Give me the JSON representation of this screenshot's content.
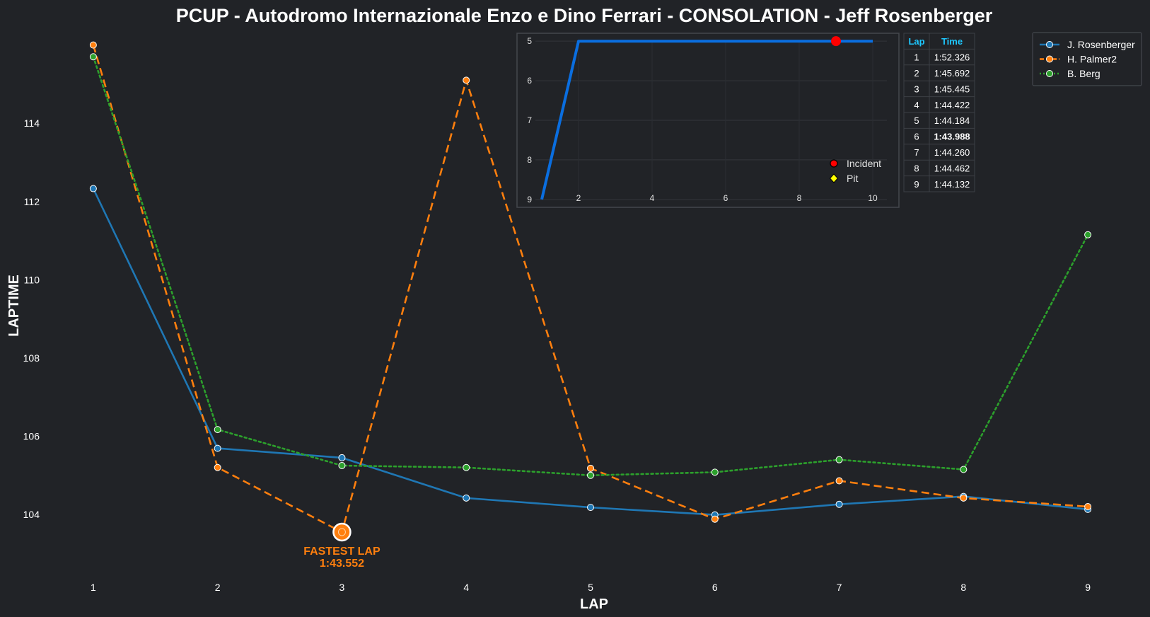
{
  "colors": {
    "background": "#212327",
    "rosenberger": "#1f77b4",
    "palmer": "#ff7f0e",
    "berg": "#2ca02c",
    "position_line": "#0a6ee0",
    "incident": "#ff0000",
    "pit": "#ffff00",
    "table_header": "#1ec8ff",
    "fastest_highlight": "#ffff00"
  },
  "chart_data": [
    {
      "type": "line",
      "title": "PCUP - Autodromo Internazionale Enzo e Dino Ferrari - CONSOLATION - Jeff Rosenberger",
      "xlabel": "LAP",
      "ylabel": "LAPTIME",
      "x": [
        1,
        2,
        3,
        4,
        5,
        6,
        7,
        8,
        9
      ],
      "xlim": [
        0.5,
        9.5
      ],
      "ylim": [
        102.5,
        116.5
      ],
      "yticks": [
        104,
        106,
        108,
        110,
        112,
        114
      ],
      "grid": false,
      "legend_position": "top-right",
      "series": [
        {
          "name": "J. Rosenberger",
          "style": "solid",
          "values": [
            112.33,
            105.69,
            105.45,
            104.42,
            104.18,
            103.99,
            104.26,
            104.46,
            104.13
          ]
        },
        {
          "name": "H. Palmer2",
          "style": "dashed",
          "values": [
            116.0,
            105.2,
            103.55,
            115.1,
            105.18,
            103.88,
            104.86,
            104.42,
            104.2
          ]
        },
        {
          "name": "B. Berg",
          "style": "dotted",
          "values": [
            115.7,
            106.17,
            105.25,
            105.2,
            105.0,
            105.08,
            105.4,
            105.15,
            111.15
          ]
        }
      ],
      "annotation": {
        "label": "FASTEST LAP",
        "time": "1:43.552",
        "lap": 3,
        "value": 103.55
      }
    },
    {
      "type": "line",
      "title": "",
      "x": [
        1,
        2,
        3,
        4,
        5,
        6,
        7,
        8,
        9,
        10
      ],
      "values": [
        9,
        5,
        5,
        5,
        5,
        5,
        5,
        5,
        5,
        5
      ],
      "xlim": [
        0.5,
        10.5
      ],
      "ylim": [
        9.2,
        4.8
      ],
      "xticks": [
        2,
        4,
        6,
        8,
        10
      ],
      "yticks": [
        5,
        6,
        7,
        8,
        9
      ],
      "y_inverted": true,
      "grid": true,
      "legend_position": "bottom-right",
      "incidents": [
        {
          "x": 9,
          "y": 5
        }
      ],
      "legend": [
        {
          "name": "Incident",
          "marker": "circle"
        },
        {
          "name": "Pit",
          "marker": "diamond"
        }
      ]
    }
  ],
  "lap_table": {
    "headers": [
      "Lap",
      "Time"
    ],
    "rows": [
      [
        "1",
        "1:52.326"
      ],
      [
        "2",
        "1:45.692"
      ],
      [
        "3",
        "1:45.445"
      ],
      [
        "4",
        "1:44.422"
      ],
      [
        "5",
        "1:44.184"
      ],
      [
        "6",
        "1:43.988"
      ],
      [
        "7",
        "1:44.260"
      ],
      [
        "8",
        "1:44.462"
      ],
      [
        "9",
        "1:44.132"
      ]
    ],
    "fastest_row": 5
  }
}
